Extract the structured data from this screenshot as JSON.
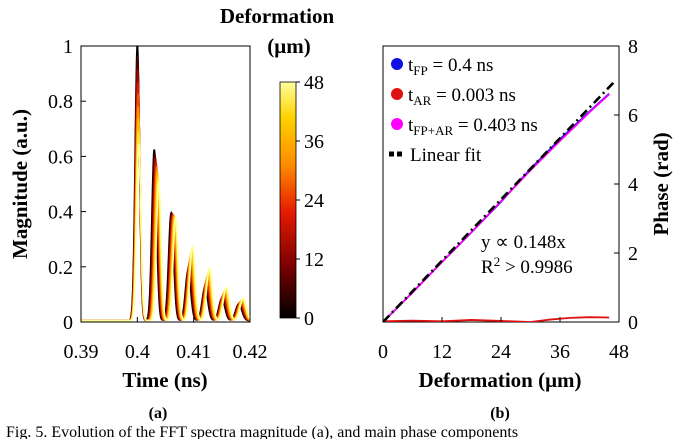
{
  "caption": "Fig. 5. Evolution of the FFT spectra magnitude (a), and main phase components",
  "panel_a_label": "(a)",
  "panel_b_label": "(b)",
  "colorbar": {
    "title_line1": "Deformation",
    "title_line2": "(μm)",
    "ticks": [
      "48",
      "36",
      "24",
      "12",
      "0"
    ],
    "range": [
      0,
      48
    ],
    "colors": [
      "#000000",
      "#7a0000",
      "#e61a00",
      "#ff8c00",
      "#ffd200",
      "#ffffa0"
    ]
  },
  "chart_data": [
    {
      "type": "line",
      "panel": "(a)",
      "xlabel": "Time (ns)",
      "ylabel": "Magnitude (a.u.)",
      "xlim": [
        0.39,
        0.42
      ],
      "ylim": [
        0,
        1
      ],
      "xticks": [
        "0.39",
        "0.4",
        "0.41",
        "0.42"
      ],
      "yticks": [
        "0",
        "0.2",
        "0.4",
        "0.6",
        "0.8",
        "1"
      ],
      "peak_times": [
        0.4,
        0.403,
        0.406,
        0.409,
        0.412,
        0.415,
        0.418
      ],
      "peak_magnitudes_at_0um": [
        0.64,
        0.5,
        0.37,
        0.27,
        0.19,
        0.12,
        0.08
      ],
      "peak_magnitudes_at_48um": [
        1.0,
        0.62,
        0.39,
        0.18,
        0.12,
        0.08,
        0.06
      ],
      "curves_color_by": "Deformation (μm)"
    },
    {
      "type": "line",
      "panel": "(b)",
      "xlabel": "Deformation (μm)",
      "ylabel": "Phase (rad)",
      "xlim": [
        0,
        48
      ],
      "ylim": [
        0,
        8
      ],
      "xticks": [
        "0",
        "12",
        "24",
        "36",
        "48"
      ],
      "yticks": [
        "0",
        "2",
        "4",
        "6",
        "8"
      ],
      "legend_position": "top-left",
      "series": [
        {
          "name": "t_FP = 0.4 ns",
          "color": "#1010e0",
          "x": [
            0,
            6,
            12,
            18,
            24,
            30,
            36,
            42,
            46
          ],
          "y": [
            0.0,
            0.86,
            1.74,
            2.6,
            3.48,
            4.44,
            5.3,
            6.1,
            6.62
          ]
        },
        {
          "name": "t_AR = 0.003 ns",
          "color": "#e01010",
          "x": [
            0,
            6,
            12,
            18,
            24,
            30,
            34,
            38,
            42,
            46
          ],
          "y": [
            0.02,
            0.04,
            0.02,
            0.06,
            0.03,
            0.0,
            0.07,
            0.12,
            0.14,
            0.13
          ]
        },
        {
          "name": "t_FP+AR = 0.403 ns",
          "color": "#ff00ff",
          "x": [
            0,
            6,
            12,
            18,
            24,
            30,
            36,
            42,
            46
          ],
          "y": [
            0.0,
            0.85,
            1.74,
            2.6,
            3.5,
            4.4,
            5.25,
            6.08,
            6.6
          ]
        },
        {
          "name": "Linear fit",
          "color": "#000000",
          "x": [
            0,
            47.3
          ],
          "y": [
            0,
            7.0
          ]
        }
      ],
      "annotations": [
        "y ∝ 0.148x",
        "R² > 0.9986"
      ]
    }
  ]
}
